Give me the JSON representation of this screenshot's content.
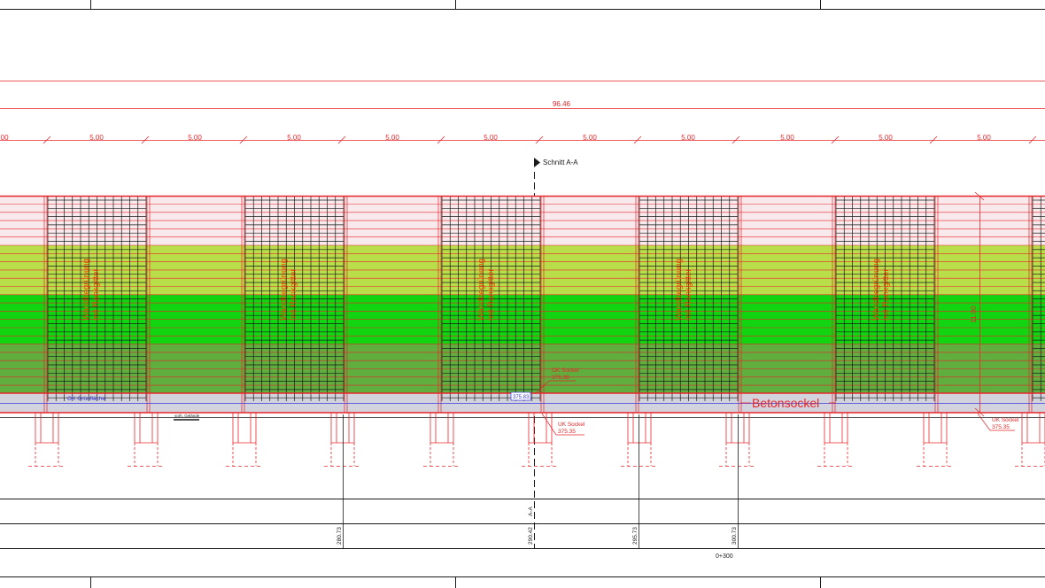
{
  "colors": {
    "dim_red": "#e8262a",
    "black": "#1a1a1a",
    "band_pink": "#f8e9ec",
    "band_light_green": "#b8df4a",
    "band_bright_green": "#12d512",
    "band_mid_green": "#5fae3e",
    "band_gray": "#d3d3dd",
    "blue": "#3a3ae0",
    "green_text": "#1f8a1f",
    "text_orange": "#f04000"
  },
  "dimensions": {
    "overall_length": "96.46",
    "bay_length": "5.00",
    "left_partial": "5.00",
    "wall_height": "11.00"
  },
  "section_marker": {
    "label": "Schnitt A-A",
    "vertical_label": "A-A"
  },
  "greening_label": {
    "line1": "Wandbegrünung",
    "line2": "mit Rankgitter"
  },
  "annotations": {
    "ok_gruenflaeche": "OK Grünfläche",
    "elevation_small": "375.83",
    "ok_sockel_label": "OK Sockel",
    "ok_sockel_value": "375.35",
    "uk_sockel_label": "UK Sockel",
    "uk_sockel_value": "375.35",
    "uk_sockel_right_label": "UK Sockel",
    "uk_sockel_right_value": "375.35",
    "vorh_gelaende": "vorh. Gelände",
    "betonsockel": "Betonsockel"
  },
  "stations": {
    "s1": "280.73",
    "s2": "290.42",
    "s3": "295.73",
    "s4": "300.73",
    "chainage": "0+300"
  }
}
